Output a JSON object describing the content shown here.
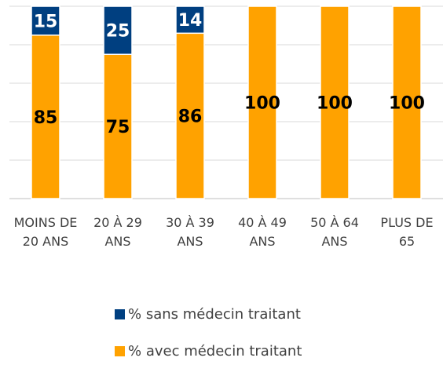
{
  "chart_data": {
    "type": "stacked_bar",
    "categories": [
      "MOINS DE 20 ANS",
      "20 À 29 ANS",
      "30 À 39 ANS",
      "40 À 49 ANS",
      "50 À 64 ANS",
      "PLUS DE 65"
    ],
    "series": [
      {
        "name": "% avec médecin traitant",
        "color": "#ffa200",
        "label_color": "#000000",
        "values": [
          85,
          75,
          86,
          100,
          100,
          100
        ]
      },
      {
        "name": "% sans médecin traitant",
        "color": "#003f80",
        "label_color": "#ffffff",
        "values": [
          15,
          25,
          14,
          null,
          null,
          null
        ]
      }
    ],
    "ylim": [
      0,
      100
    ],
    "yticks": [
      0,
      20,
      40,
      60,
      80,
      100
    ],
    "grid": true
  }
}
